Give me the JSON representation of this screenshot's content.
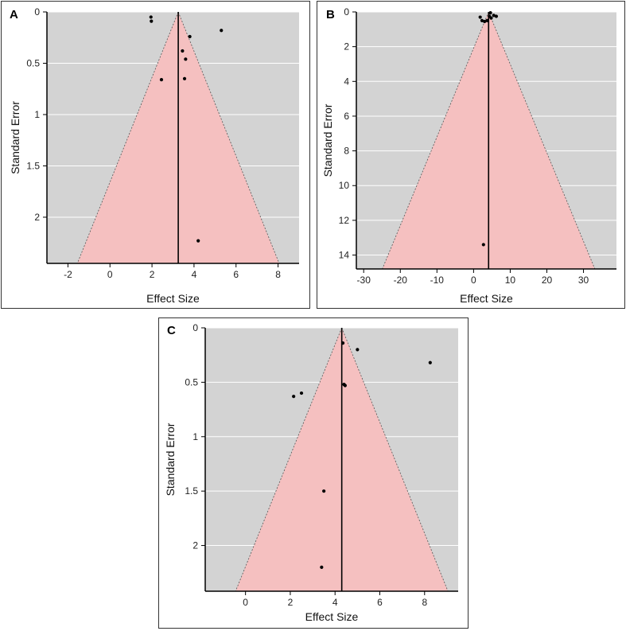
{
  "chart_data": [
    {
      "type": "scatter",
      "panel": "A",
      "xlabel": "Effect Size",
      "ylabel": "Standard Error",
      "xlim": [
        -3,
        9
      ],
      "ylim": [
        0,
        2.45
      ],
      "y_inverted": true,
      "xticks": [
        -2,
        0,
        2,
        4,
        6,
        8
      ],
      "yticks": [
        0,
        0.5,
        1,
        1.5,
        2
      ],
      "vertical_line": 3.25,
      "points": [
        {
          "x": 1.95,
          "y": 0.05
        },
        {
          "x": 1.97,
          "y": 0.09
        },
        {
          "x": 5.3,
          "y": 0.18
        },
        {
          "x": 3.8,
          "y": 0.24
        },
        {
          "x": 3.45,
          "y": 0.38
        },
        {
          "x": 3.6,
          "y": 0.46
        },
        {
          "x": 2.45,
          "y": 0.66
        },
        {
          "x": 3.55,
          "y": 0.65
        },
        {
          "x": 4.2,
          "y": 2.23
        }
      ]
    },
    {
      "type": "scatter",
      "panel": "B",
      "xlabel": "Effect Size",
      "ylabel": "Standard Error",
      "xlim": [
        -32,
        39
      ],
      "ylim": [
        0,
        14.8
      ],
      "y_inverted": true,
      "xticks": [
        -30,
        -20,
        -10,
        0,
        10,
        20,
        30
      ],
      "yticks": [
        0,
        2,
        4,
        6,
        8,
        10,
        12,
        14
      ],
      "vertical_line": 4.1,
      "points": [
        {
          "x": 1.8,
          "y": 0.3
        },
        {
          "x": 2.3,
          "y": 0.5
        },
        {
          "x": 3.0,
          "y": 0.55
        },
        {
          "x": 3.7,
          "y": 0.5
        },
        {
          "x": 4.3,
          "y": 0.25
        },
        {
          "x": 4.8,
          "y": 0.35
        },
        {
          "x": 5.5,
          "y": 0.2
        },
        {
          "x": 6.2,
          "y": 0.25
        },
        {
          "x": 4.6,
          "y": 0.05
        },
        {
          "x": 2.7,
          "y": 13.4
        }
      ]
    },
    {
      "type": "scatter",
      "panel": "C",
      "xlabel": "Effect Size",
      "ylabel": "Standard Error",
      "xlim": [
        -1.8,
        9.5
      ],
      "ylim": [
        0,
        2.42
      ],
      "y_inverted": true,
      "xticks": [
        0,
        2,
        4,
        6,
        8
      ],
      "yticks": [
        0,
        0.5,
        1,
        1.5,
        2
      ],
      "vertical_line": 4.3,
      "points": [
        {
          "x": 4.35,
          "y": 0.14
        },
        {
          "x": 5.0,
          "y": 0.2
        },
        {
          "x": 8.25,
          "y": 0.32
        },
        {
          "x": 4.4,
          "y": 0.52
        },
        {
          "x": 4.45,
          "y": 0.53
        },
        {
          "x": 2.5,
          "y": 0.6
        },
        {
          "x": 2.15,
          "y": 0.63
        },
        {
          "x": 3.5,
          "y": 1.5
        },
        {
          "x": 3.4,
          "y": 2.2
        }
      ]
    }
  ]
}
